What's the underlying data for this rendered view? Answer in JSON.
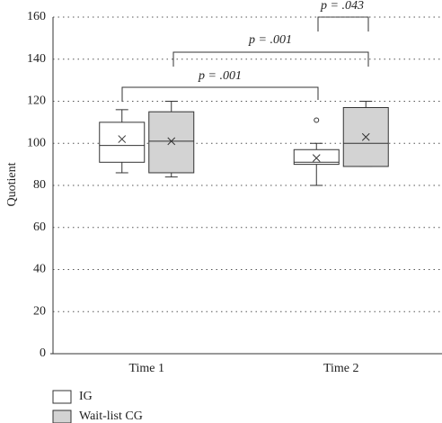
{
  "chart_data": {
    "type": "box",
    "y_label": "Quotient",
    "categories": [
      "Time 1",
      "Time 2"
    ],
    "series": [
      {
        "name": "IG",
        "color": "#ffffff",
        "boxes": [
          {
            "whislo": 86,
            "q1": 91,
            "med": 99,
            "q3": 110,
            "whishi": 116,
            "mean": 102,
            "fliers": []
          },
          {
            "whislo": 80,
            "q1": 90,
            "med": 91,
            "q3": 97,
            "whishi": 100,
            "mean": 93,
            "fliers": [
              111
            ]
          }
        ]
      },
      {
        "name": "Wait-list CG",
        "color": "#d3d3d3",
        "boxes": [
          {
            "whislo": 84,
            "q1": 86,
            "med": 101,
            "q3": 115,
            "whishi": 120,
            "mean": 101,
            "fliers": []
          },
          {
            "whislo": 89,
            "q1": 89,
            "med": 100,
            "q3": 117,
            "whishi": 120,
            "mean": 103,
            "fliers": []
          }
        ]
      }
    ],
    "annotations": [
      "p = .001",
      "p = .001",
      "p = .043"
    ],
    "ylim": [
      0,
      160
    ],
    "yticks": [
      0,
      20,
      40,
      60,
      80,
      100,
      120,
      140,
      160
    ],
    "grid": true
  }
}
